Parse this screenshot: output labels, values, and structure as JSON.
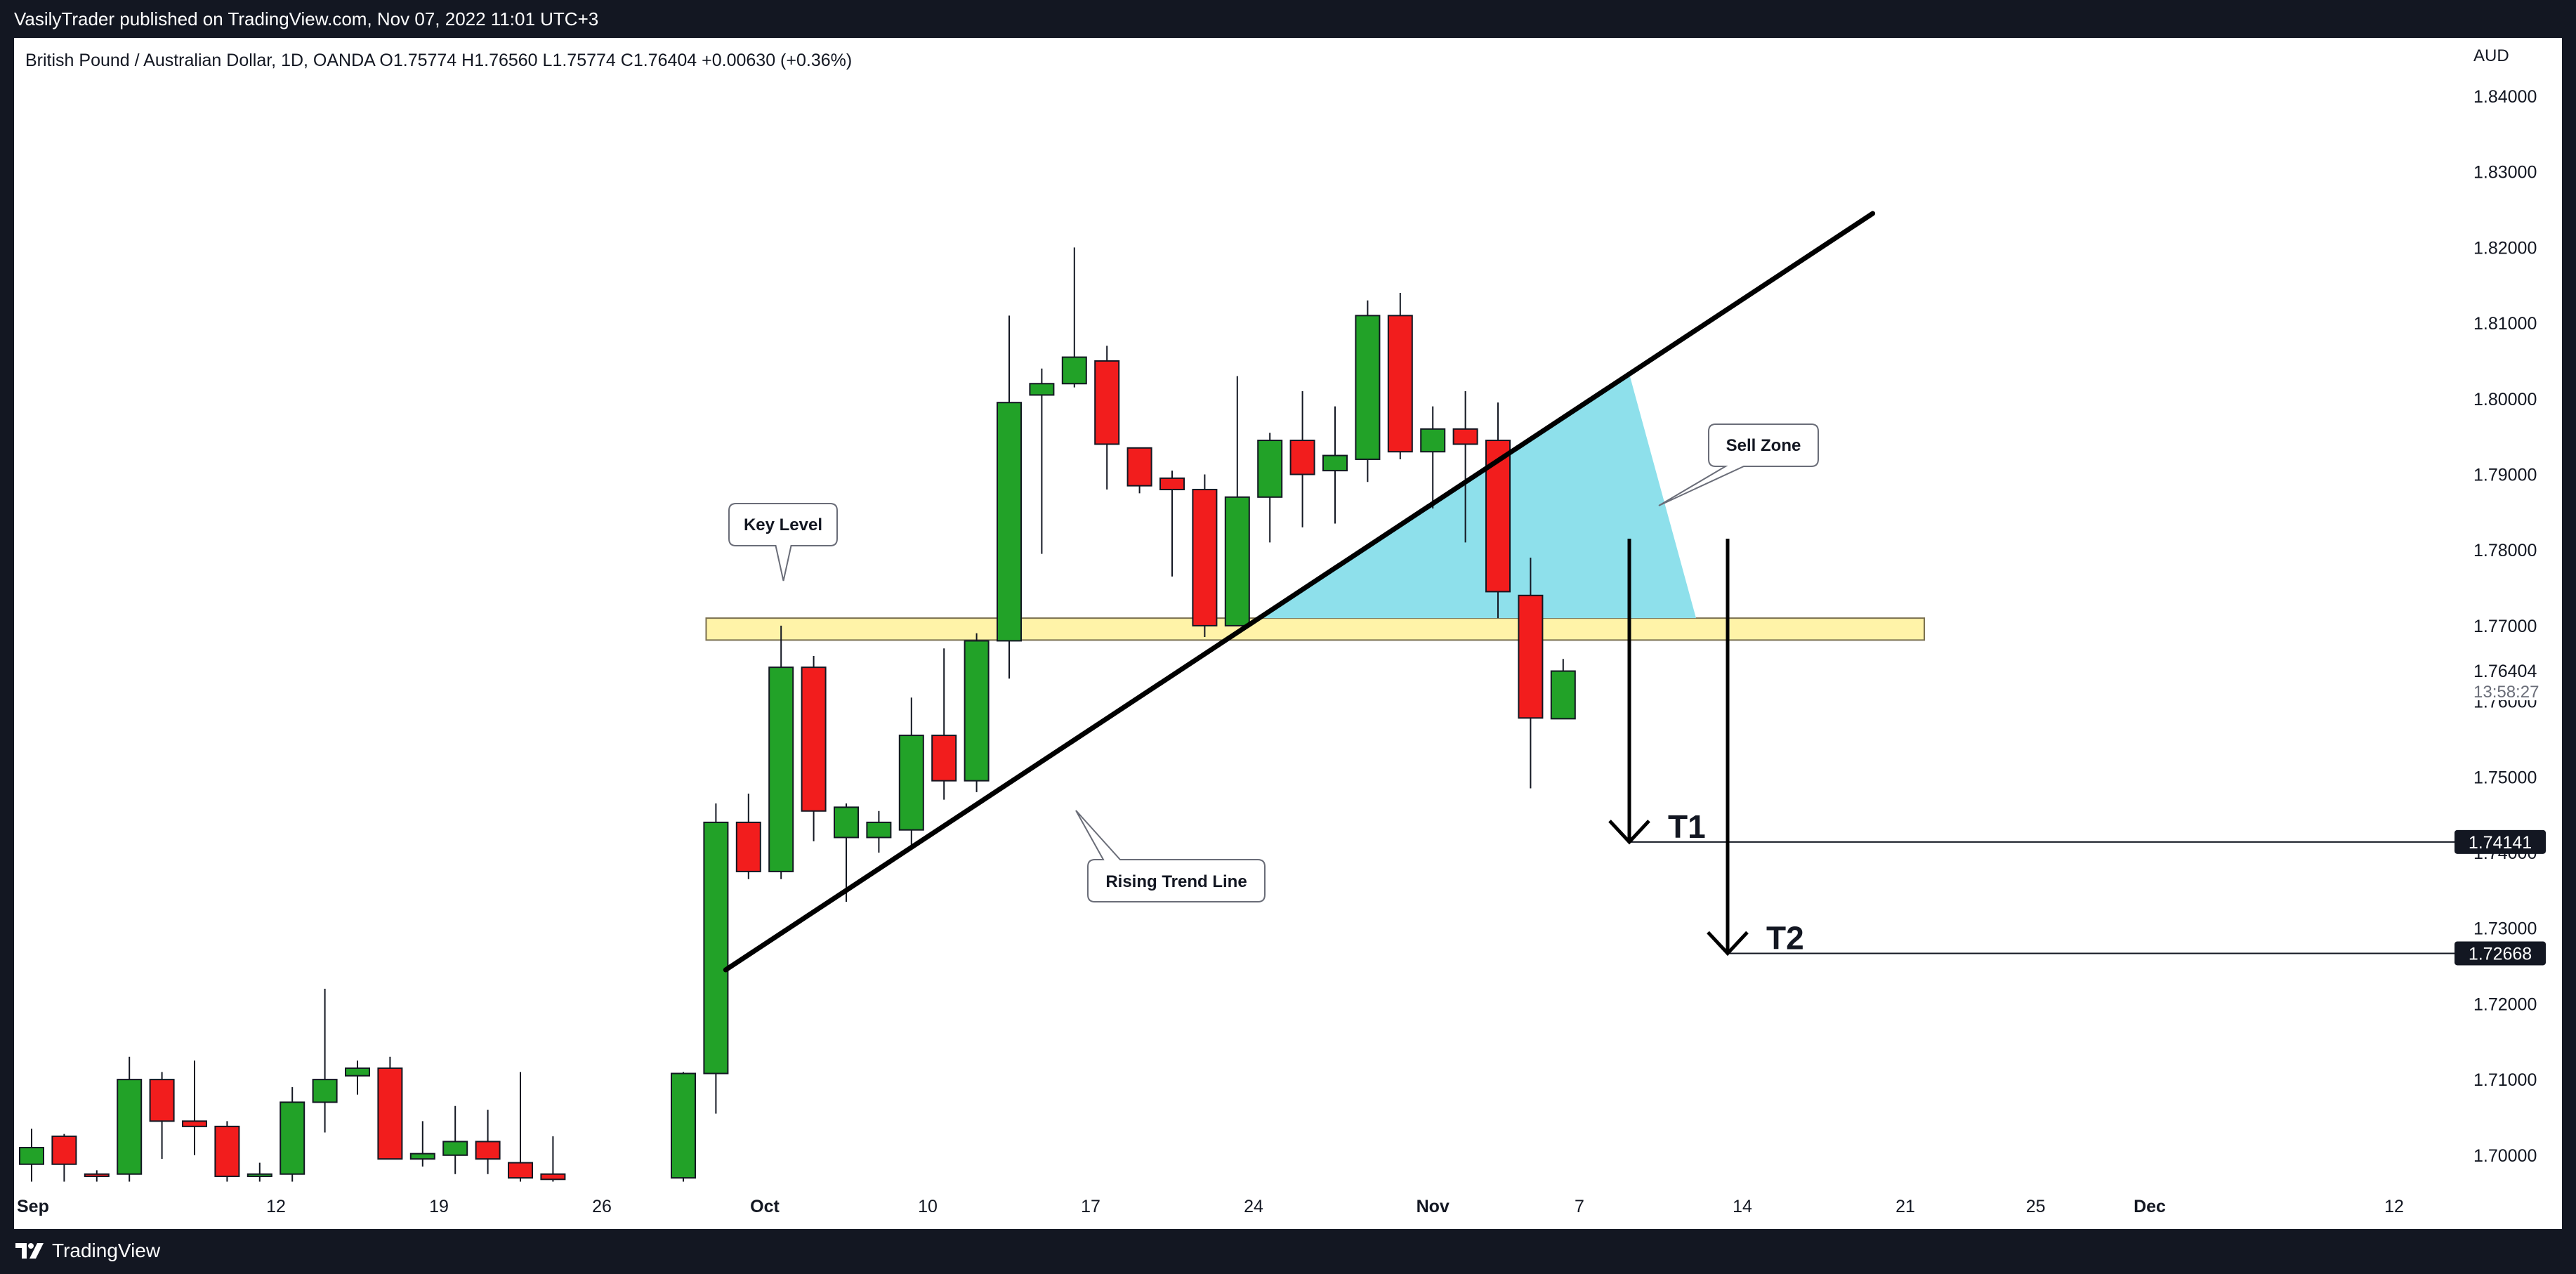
{
  "attribution": "VasilyTrader published on TradingView.com, Nov 07, 2022 11:01 UTC+3",
  "footer": {
    "logo_text": "TradingView",
    "logo_icon": "tradingview-logo-icon"
  },
  "chart_data": {
    "type": "candlestick",
    "title": "British Pound / Australian Dollar, 1D, OANDA",
    "ohlc_header": {
      "open": "O1.75774",
      "high": "H1.76560",
      "low": "L1.75774",
      "close": "C1.76404",
      "change": "+0.00630 (+0.36%)"
    },
    "currency": "AUD",
    "y_axis": {
      "range": [
        1.6965,
        1.8465
      ],
      "ticks": [
        "1.84000",
        "1.83000",
        "1.82000",
        "1.81000",
        "1.80000",
        "1.79000",
        "1.78000",
        "1.77000",
        "1.76000",
        "1.75000",
        "1.74000",
        "1.73000",
        "1.72000",
        "1.71000",
        "1.70000"
      ]
    },
    "x_axis": {
      "labels": [
        {
          "text": "Sep",
          "bold": true,
          "i": 0
        },
        {
          "text": "12",
          "bold": false,
          "i": 7.5
        },
        {
          "text": "19",
          "bold": false,
          "i": 12.5
        },
        {
          "text": "26",
          "bold": false,
          "i": 17.5
        },
        {
          "text": "Oct",
          "bold": true,
          "i": 22.5
        },
        {
          "text": "10",
          "bold": false,
          "i": 27.5
        },
        {
          "text": "17",
          "bold": false,
          "i": 32.5
        },
        {
          "text": "24",
          "bold": false,
          "i": 37.5
        },
        {
          "text": "Nov",
          "bold": true,
          "i": 43
        },
        {
          "text": "7",
          "bold": false,
          "i": 47.5
        },
        {
          "text": "14",
          "bold": false,
          "i": 52.5
        },
        {
          "text": "21",
          "bold": false,
          "i": 57.5
        },
        {
          "text": "25",
          "bold": false,
          "i": 61.5
        },
        {
          "text": "Dec",
          "bold": true,
          "i": 65
        },
        {
          "text": "12",
          "bold": false,
          "i": 72.5
        }
      ]
    },
    "candles": [
      {
        "i": 0,
        "o": 1.6988,
        "h": 1.7035,
        "l": 1.6965,
        "c": 1.701
      },
      {
        "i": 1,
        "o": 1.7025,
        "h": 1.7028,
        "l": 1.6965,
        "c": 1.6988
      },
      {
        "i": 2,
        "o": 1.6975,
        "h": 1.698,
        "l": 1.6965,
        "c": 1.6972
      },
      {
        "i": 3,
        "o": 1.6975,
        "h": 1.713,
        "l": 1.6965,
        "c": 1.71
      },
      {
        "i": 4,
        "o": 1.71,
        "h": 1.711,
        "l": 1.6995,
        "c": 1.7045
      },
      {
        "i": 5,
        "o": 1.7045,
        "h": 1.7125,
        "l": 1.7,
        "c": 1.7038
      },
      {
        "i": 6,
        "o": 1.7038,
        "h": 1.7045,
        "l": 1.6965,
        "c": 1.6972
      },
      {
        "i": 7,
        "o": 1.6972,
        "h": 1.699,
        "l": 1.6965,
        "c": 1.6975
      },
      {
        "i": 8,
        "o": 1.6975,
        "h": 1.709,
        "l": 1.6965,
        "c": 1.707
      },
      {
        "i": 9,
        "o": 1.707,
        "h": 1.722,
        "l": 1.703,
        "c": 1.71
      },
      {
        "i": 10,
        "o": 1.7105,
        "h": 1.7125,
        "l": 1.708,
        "c": 1.7115
      },
      {
        "i": 11,
        "o": 1.7115,
        "h": 1.713,
        "l": 1.6995,
        "c": 1.6995
      },
      {
        "i": 12,
        "o": 1.6995,
        "h": 1.7045,
        "l": 1.6985,
        "c": 1.7002
      },
      {
        "i": 13,
        "o": 1.7,
        "h": 1.7065,
        "l": 1.6975,
        "c": 1.7018
      },
      {
        "i": 14,
        "o": 1.7018,
        "h": 1.706,
        "l": 1.6975,
        "c": 1.6995
      },
      {
        "i": 15,
        "o": 1.699,
        "h": 1.711,
        "l": 1.6965,
        "c": 1.697
      },
      {
        "i": 16,
        "o": 1.6975,
        "h": 1.7025,
        "l": 1.6965,
        "c": 1.6968
      },
      {
        "i": 20,
        "o": 1.697,
        "h": 1.711,
        "l": 1.6965,
        "c": 1.7108
      },
      {
        "i": 21,
        "o": 1.7108,
        "h": 1.7465,
        "l": 1.7055,
        "c": 1.744
      },
      {
        "i": 22,
        "o": 1.744,
        "h": 1.7478,
        "l": 1.7365,
        "c": 1.7375
      },
      {
        "i": 23,
        "o": 1.7375,
        "h": 1.77,
        "l": 1.7365,
        "c": 1.7645
      },
      {
        "i": 24,
        "o": 1.7645,
        "h": 1.766,
        "l": 1.7415,
        "c": 1.7455
      },
      {
        "i": 25,
        "o": 1.742,
        "h": 1.7465,
        "l": 1.7335,
        "c": 1.746
      },
      {
        "i": 26,
        "o": 1.742,
        "h": 1.7455,
        "l": 1.74,
        "c": 1.744
      },
      {
        "i": 27,
        "o": 1.743,
        "h": 1.7605,
        "l": 1.7405,
        "c": 1.7555
      },
      {
        "i": 28,
        "o": 1.7555,
        "h": 1.767,
        "l": 1.747,
        "c": 1.7495
      },
      {
        "i": 29,
        "o": 1.7495,
        "h": 1.769,
        "l": 1.748,
        "c": 1.768
      },
      {
        "i": 30,
        "o": 1.768,
        "h": 1.811,
        "l": 1.763,
        "c": 1.7995
      },
      {
        "i": 31,
        "o": 1.8005,
        "h": 1.804,
        "l": 1.7795,
        "c": 1.802
      },
      {
        "i": 32,
        "o": 1.802,
        "h": 1.82,
        "l": 1.8015,
        "c": 1.8055
      },
      {
        "i": 33,
        "o": 1.805,
        "h": 1.807,
        "l": 1.788,
        "c": 1.794
      },
      {
        "i": 34,
        "o": 1.7935,
        "h": 1.7935,
        "l": 1.7875,
        "c": 1.7885
      },
      {
        "i": 35,
        "o": 1.7895,
        "h": 1.7905,
        "l": 1.7765,
        "c": 1.788
      },
      {
        "i": 36,
        "o": 1.788,
        "h": 1.79,
        "l": 1.7685,
        "c": 1.77
      },
      {
        "i": 37,
        "o": 1.77,
        "h": 1.803,
        "l": 1.77,
        "c": 1.787
      },
      {
        "i": 38,
        "o": 1.787,
        "h": 1.7955,
        "l": 1.781,
        "c": 1.7945
      },
      {
        "i": 39,
        "o": 1.7945,
        "h": 1.801,
        "l": 1.783,
        "c": 1.79
      },
      {
        "i": 40,
        "o": 1.7905,
        "h": 1.799,
        "l": 1.7835,
        "c": 1.7925
      },
      {
        "i": 41,
        "o": 1.792,
        "h": 1.813,
        "l": 1.789,
        "c": 1.811
      },
      {
        "i": 42,
        "o": 1.811,
        "h": 1.814,
        "l": 1.792,
        "c": 1.793
      },
      {
        "i": 43,
        "o": 1.793,
        "h": 1.799,
        "l": 1.7855,
        "c": 1.796
      },
      {
        "i": 44,
        "o": 1.796,
        "h": 1.801,
        "l": 1.781,
        "c": 1.794
      },
      {
        "i": 45,
        "o": 1.7945,
        "h": 1.7995,
        "l": 1.771,
        "c": 1.7745
      },
      {
        "i": 46,
        "o": 1.774,
        "h": 1.779,
        "l": 1.7485,
        "c": 1.7578
      },
      {
        "i": 47,
        "o": 1.7577,
        "h": 1.7656,
        "l": 1.7577,
        "c": 1.764
      }
    ],
    "current_price": {
      "label": "1.76404",
      "countdown": "13:58:27"
    },
    "annotations": {
      "key_level_label": "Key Level",
      "sell_zone_label": "Sell Zone",
      "trend_line_label": "Rising Trend Line",
      "targets": [
        {
          "label": "T1",
          "price": 1.74141,
          "price_label": "1.74141"
        },
        {
          "label": "T2",
          "price": 1.72668,
          "price_label": "1.72668"
        }
      ],
      "key_level_band": [
        1.7681,
        1.771
      ],
      "trend_line": {
        "start": {
          "i": 21.3,
          "p": 1.7245
        },
        "end": {
          "i": 56.5,
          "p": 1.8245
        }
      }
    },
    "colors": {
      "up": "#22a228",
      "down": "#f21d1d",
      "key_level": "#fff3a8",
      "key_level_border": "#7a7050",
      "sell_zone": "#8ee0eb",
      "background": "#ffffff",
      "frame": "#131722"
    },
    "grid": false,
    "legend": "none"
  }
}
